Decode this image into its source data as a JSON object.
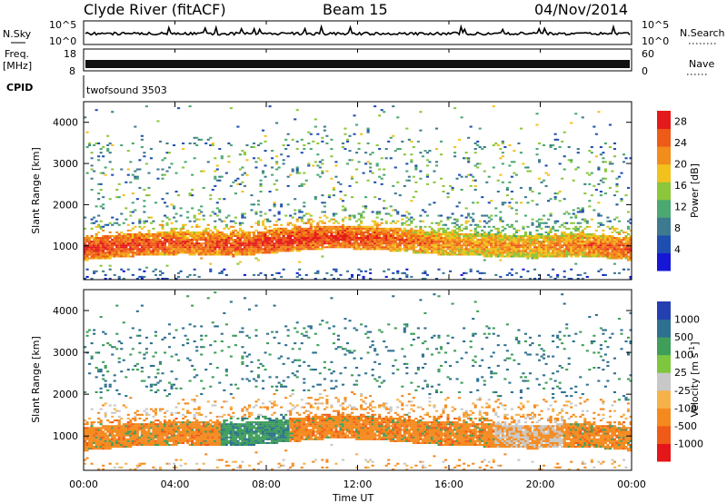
{
  "header": {
    "station": "Clyde River (fitACF)",
    "beam": "Beam 15",
    "date": "04/Nov/2014"
  },
  "top_panels": {
    "nsky_label": "N.Sky",
    "nsearch_label": "N.Search",
    "noise_ticks": [
      "10^5",
      "10^0"
    ],
    "freq_label": "Freq.",
    "freq_unit": "[MHz]",
    "freq_ticks": [
      "18",
      "8"
    ],
    "nave_label": "Nave",
    "nave_ticks": [
      "60",
      "0"
    ],
    "cpid_label": "CPID",
    "cpid_value": "twofsound 3503"
  },
  "colors": {
    "power_scale": [
      "#1616d6",
      "#1e4fb0",
      "#3d7a90",
      "#4aa870",
      "#8cc63a",
      "#f2c21c",
      "#f28c1a",
      "#ee5a18",
      "#e41a1a"
    ],
    "velocity_scale": [
      "#e4161a",
      "#f05a18",
      "#f48a1e",
      "#f6b24a",
      "#c8c8c8",
      "#7ec63e",
      "#3e9e5a",
      "#2d7090",
      "#2440b0"
    ]
  },
  "chart_data": [
    {
      "type": "heatmap",
      "panel": "power",
      "xlabel": "Time UT",
      "ylabel": "Slant Range [km]",
      "x_ticks": [
        "00:00",
        "04:00",
        "08:00",
        "12:00",
        "16:00",
        "20:00",
        "00:00"
      ],
      "x_range_hours": [
        0,
        24
      ],
      "y_ticks": [
        1000,
        2000,
        3000,
        4000
      ],
      "y_range_km": [
        180,
        4500
      ],
      "colorbar": {
        "label": "Power [dB]",
        "ticks": [
          4,
          8,
          12,
          16,
          20,
          24,
          28
        ],
        "range": [
          0,
          30
        ]
      },
      "features": {
        "main_band_center_km": [
          900,
          1000,
          1050,
          1000,
          1100,
          1200,
          1150,
          1050,
          1000,
          950,
          1000,
          900
        ],
        "main_band_power_db": [
          28,
          27,
          26,
          27,
          28,
          28,
          26,
          24,
          22,
          22,
          24,
          26
        ]
      }
    },
    {
      "type": "heatmap",
      "panel": "velocity",
      "xlabel": "Time UT",
      "ylabel": "Slant Range [km]",
      "x_ticks": [
        "00:00",
        "04:00",
        "08:00",
        "12:00",
        "16:00",
        "20:00",
        "00:00"
      ],
      "x_range_hours": [
        0,
        24
      ],
      "y_ticks": [
        1000,
        2000,
        3000,
        4000
      ],
      "y_range_km": [
        180,
        4500
      ],
      "colorbar": {
        "label": "Velocity [m s^-1]",
        "ticks": [
          "1000",
          "500",
          "100",
          "25",
          "-25",
          "-100",
          "-500",
          "-1000"
        ]
      }
    }
  ]
}
